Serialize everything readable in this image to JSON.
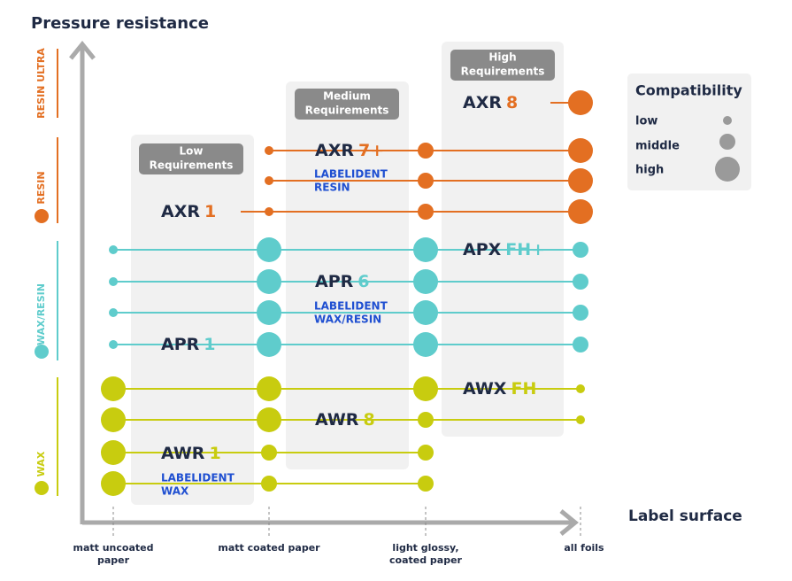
{
  "title": "Pressure resistance",
  "x_axis_label": "Label surface",
  "columns": [
    {
      "lines": [
        "matt uncoated",
        "paper"
      ]
    },
    {
      "lines": [
        "matt coated paper"
      ]
    },
    {
      "lines": [
        "light glossy,",
        "coated paper"
      ]
    },
    {
      "lines": [
        "all foils"
      ]
    }
  ],
  "bands": [
    "RESIN ULTRA",
    "RESIN",
    "WAX/RESIN",
    "WAX"
  ],
  "groups": [
    {
      "lines": [
        "Low",
        "Requirements"
      ]
    },
    {
      "lines": [
        "Medium",
        "Requirements"
      ]
    },
    {
      "lines": [
        "High",
        "Requirements"
      ]
    }
  ],
  "products": [
    {
      "prefix": "AXR",
      "suffix": "8"
    },
    {
      "prefix": "AXR",
      "suffix": "7+"
    },
    {
      "lines": [
        "LABELIDENT",
        "RESIN"
      ]
    },
    {
      "prefix": "AXR",
      "suffix": "1"
    },
    {
      "prefix": "APX",
      "suffix": "FH+"
    },
    {
      "prefix": "APR",
      "suffix": "6"
    },
    {
      "lines": [
        "LABELIDENT",
        "WAX/RESIN"
      ]
    },
    {
      "prefix": "APR",
      "suffix": "1"
    },
    {
      "prefix": "AWX",
      "suffix": "FH"
    },
    {
      "prefix": "AWR",
      "suffix": "8"
    },
    {
      "prefix": "AWR",
      "suffix": "1"
    },
    {
      "lines": [
        "LABELIDENT",
        "WAX"
      ]
    }
  ],
  "legend": {
    "title": "Compatibility",
    "items": [
      "low",
      "middle",
      "high"
    ]
  }
}
